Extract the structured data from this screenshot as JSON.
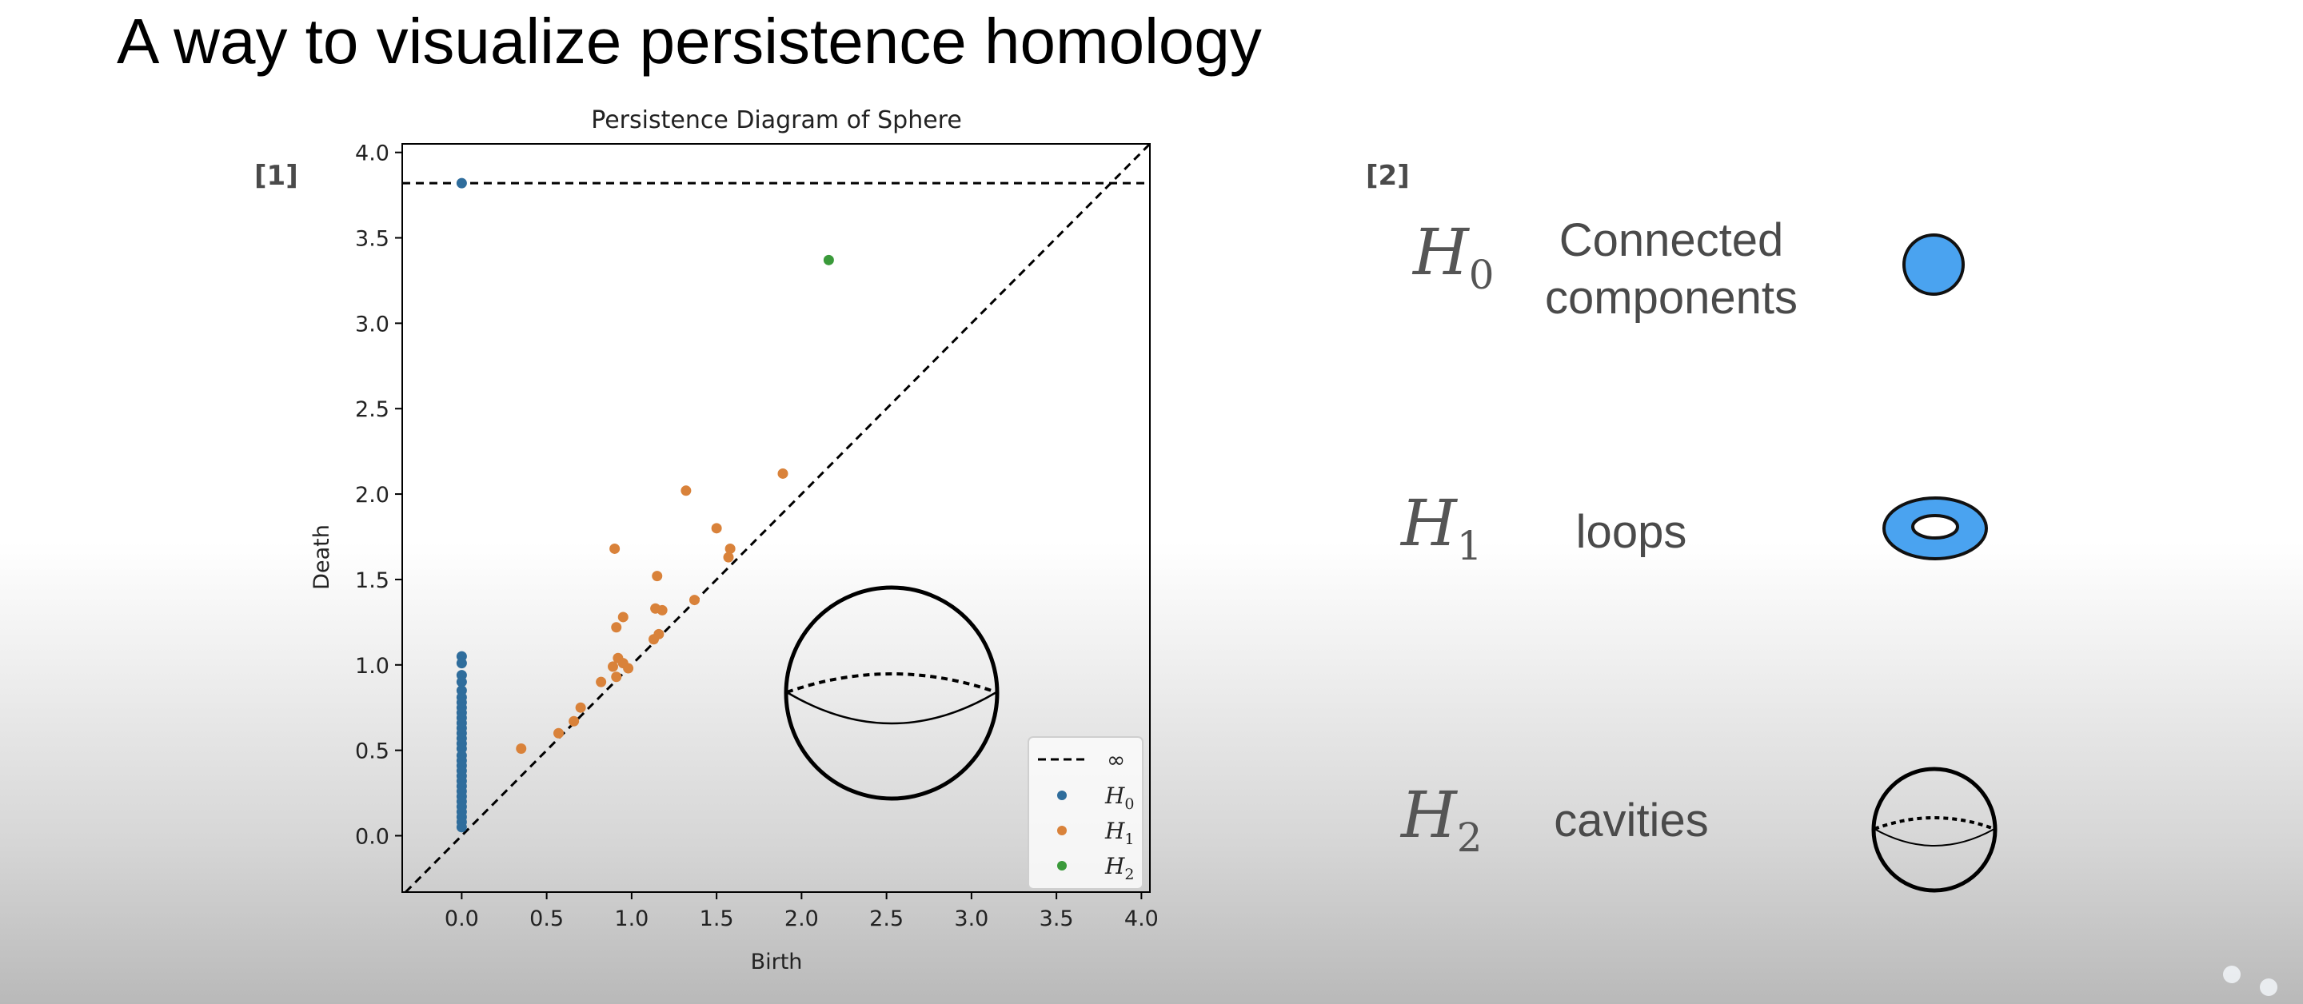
{
  "slide": {
    "title": "A way to visualize persistence homology",
    "ref_left": "[1]",
    "ref_right": "[2]"
  },
  "chart_data": {
    "type": "scatter",
    "title": "Persistence Diagram of Sphere",
    "xlabel": "Birth",
    "ylabel": "Death",
    "xlim": [
      -0.35,
      4.05
    ],
    "ylim": [
      -0.33,
      4.05
    ],
    "x_ticks": [
      0.0,
      0.5,
      1.0,
      1.5,
      2.0,
      2.5,
      3.0,
      3.5,
      4.0
    ],
    "x_tick_labels": [
      "0.0",
      "0.5",
      "1.0",
      "1.5",
      "2.0",
      "2.5",
      "3.0",
      "3.5",
      "4.0"
    ],
    "y_ticks": [
      0.0,
      0.5,
      1.0,
      1.5,
      2.0,
      2.5,
      3.0,
      3.5,
      4.0
    ],
    "y_tick_labels": [
      "0.0",
      "0.5",
      "1.0",
      "1.5",
      "2.0",
      "2.5",
      "3.0",
      "3.5",
      "4.0"
    ],
    "grid": false,
    "legend_position": "bottom-right",
    "infinity_line": {
      "label": "∞",
      "y": 3.82
    },
    "series": [
      {
        "name": "H0",
        "color": "#2f6d9c",
        "points": [
          [
            0,
            3.82
          ],
          [
            0,
            1.05
          ],
          [
            0,
            1.01
          ],
          [
            0,
            0.94
          ],
          [
            0,
            0.9
          ],
          [
            0,
            0.85
          ],
          [
            0,
            0.81
          ],
          [
            0,
            0.78
          ],
          [
            0,
            0.75
          ],
          [
            0,
            0.72
          ],
          [
            0,
            0.69
          ],
          [
            0,
            0.66
          ],
          [
            0,
            0.63
          ],
          [
            0,
            0.6
          ],
          [
            0,
            0.57
          ],
          [
            0,
            0.54
          ],
          [
            0,
            0.51
          ],
          [
            0,
            0.47
          ],
          [
            0,
            0.44
          ],
          [
            0,
            0.41
          ],
          [
            0,
            0.38
          ],
          [
            0,
            0.35
          ],
          [
            0,
            0.32
          ],
          [
            0,
            0.29
          ],
          [
            0,
            0.26
          ],
          [
            0,
            0.23
          ],
          [
            0,
            0.2
          ],
          [
            0,
            0.17
          ],
          [
            0,
            0.14
          ],
          [
            0,
            0.11
          ],
          [
            0,
            0.08
          ],
          [
            0,
            0.05
          ]
        ]
      },
      {
        "name": "H1",
        "color": "#d9823a",
        "points": [
          [
            1.89,
            2.12
          ],
          [
            1.32,
            2.02
          ],
          [
            1.5,
            1.8
          ],
          [
            1.58,
            1.68
          ],
          [
            1.57,
            1.63
          ],
          [
            0.9,
            1.68
          ],
          [
            1.15,
            1.52
          ],
          [
            1.37,
            1.38
          ],
          [
            1.14,
            1.33
          ],
          [
            1.18,
            1.32
          ],
          [
            0.95,
            1.28
          ],
          [
            0.91,
            1.22
          ],
          [
            1.16,
            1.18
          ],
          [
            1.13,
            1.15
          ],
          [
            0.92,
            1.04
          ],
          [
            0.95,
            1.01
          ],
          [
            0.89,
            0.99
          ],
          [
            0.98,
            0.98
          ],
          [
            0.91,
            0.93
          ],
          [
            0.82,
            0.9
          ],
          [
            0.7,
            0.75
          ],
          [
            0.66,
            0.67
          ],
          [
            0.57,
            0.6
          ],
          [
            0.35,
            0.51
          ]
        ]
      },
      {
        "name": "H2",
        "color": "#3a9a3a",
        "points": [
          [
            2.16,
            3.37
          ]
        ]
      }
    ]
  },
  "legend": {
    "infinity": "∞",
    "items": [
      {
        "symbol": "H",
        "sub": "0",
        "color": "#2f6d9c"
      },
      {
        "symbol": "H",
        "sub": "1",
        "color": "#d9823a"
      },
      {
        "symbol": "H",
        "sub": "2",
        "color": "#3a9a3a"
      }
    ]
  },
  "homology": [
    {
      "symbol": "H",
      "sub": "0",
      "label_lines": [
        "Connected",
        "components"
      ],
      "icon": "filled-circle-icon",
      "color": "#4aa3f0"
    },
    {
      "symbol": "H",
      "sub": "1",
      "label_lines": [
        "loops"
      ],
      "icon": "torus-ring-icon",
      "color": "#4aa3f0"
    },
    {
      "symbol": "H",
      "sub": "2",
      "label_lines": [
        "cavities"
      ],
      "icon": "hollow-sphere-icon",
      "color": "#000000"
    }
  ]
}
